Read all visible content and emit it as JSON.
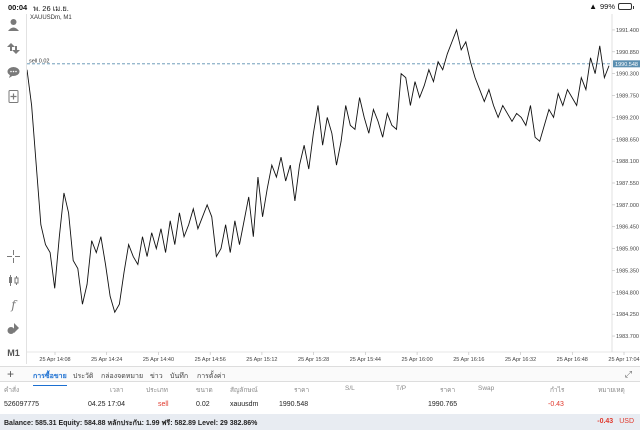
{
  "status_bar": {
    "time": "00:04",
    "date": "พ. 26 เม.ย.",
    "battery": "99%",
    "battery_level": 0.99
  },
  "toolbar": {
    "timeframe": "M1"
  },
  "chart": {
    "symbol_label": "XAUUSDm, M1",
    "order_line_label": "sell 0.02",
    "order_price": 1990.548,
    "current_price_tag": "1990.548",
    "line_color": "#111111",
    "order_line_color": "#5b8fb0",
    "price_tag_color": "#5b8fb0"
  },
  "chart_data": {
    "type": "line",
    "title": "XAUUSDm, M1",
    "xlabel": "",
    "ylabel": "",
    "ylim": [
      1983.5,
      1991.6
    ],
    "grid": false,
    "y_ticks": [
      "1991.400",
      "1990.850",
      "1990.300",
      "1989.750",
      "1989.200",
      "1988.650",
      "1988.100",
      "1987.550",
      "1987.000",
      "1986.450",
      "1985.900",
      "1985.350",
      "1984.800",
      "1984.250",
      "1983.700"
    ],
    "x_ticks": [
      "25 Apr 14:08",
      "25 Apr 14:24",
      "25 Apr 14:40",
      "25 Apr 14:56",
      "25 Apr 15:12",
      "25 Apr 15:28",
      "25 Apr 15:44",
      "25 Apr 16:00",
      "25 Apr 16:16",
      "25 Apr 16:32",
      "25 Apr 16:48",
      "25 Apr 17:04"
    ],
    "series": [
      {
        "values": [
          1990.4,
          1989.5,
          1988.0,
          1986.5,
          1986.0,
          1985.8,
          1984.9,
          1986.2,
          1987.3,
          1986.8,
          1985.6,
          1985.4,
          1984.5,
          1985.0,
          1986.1,
          1985.8,
          1986.2,
          1985.5,
          1984.7,
          1984.3,
          1984.5,
          1985.3,
          1986.0,
          1985.7,
          1985.5,
          1986.2,
          1985.7,
          1986.3,
          1985.9,
          1986.4,
          1985.8,
          1986.6,
          1986.0,
          1986.8,
          1986.2,
          1986.5,
          1986.9,
          1986.4,
          1986.7,
          1987.0,
          1986.7,
          1985.7,
          1985.9,
          1986.5,
          1985.8,
          1986.6,
          1986.0,
          1986.6,
          1987.2,
          1986.2,
          1987.7,
          1986.7,
          1987.4,
          1988.0,
          1987.7,
          1988.2,
          1987.6,
          1988.0,
          1987.1,
          1988.0,
          1988.5,
          1987.9,
          1988.8,
          1989.5,
          1988.5,
          1989.2,
          1988.8,
          1988.0,
          1988.6,
          1989.5,
          1989.0,
          1988.9,
          1989.7,
          1989.2,
          1988.8,
          1989.4,
          1989.1,
          1988.7,
          1989.3,
          1989.0,
          1988.9,
          1990.3,
          1990.2,
          1989.5,
          1990.1,
          1989.7,
          1990.0,
          1990.4,
          1990.1,
          1990.6,
          1990.4,
          1990.8,
          1991.1,
          1991.4,
          1990.9,
          1991.1,
          1990.6,
          1990.2,
          1989.9,
          1989.6,
          1989.9,
          1989.5,
          1989.2,
          1989.5,
          1989.3,
          1989.1,
          1989.3,
          1989.2,
          1989.0,
          1989.5,
          1988.7,
          1988.6,
          1989.0,
          1989.4,
          1989.2,
          1989.8,
          1989.5,
          1989.9,
          1989.7,
          1989.5,
          1990.2,
          1989.9,
          1990.7,
          1990.3,
          1991.0,
          1990.2,
          1990.5
        ]
      }
    ]
  },
  "tabs": [
    {
      "label": "การซื้อขาย",
      "active": true
    },
    {
      "label": "ประวัติ",
      "active": false
    },
    {
      "label": "กล่องจดหมาย",
      "active": false
    },
    {
      "label": "ข่าว",
      "active": false
    },
    {
      "label": "บันทึก",
      "active": false
    },
    {
      "label": "การตั้งค่า",
      "active": false
    }
  ],
  "table": {
    "headers": [
      "คำสั่ง",
      "เวลา",
      "ประเภท",
      "ขนาด",
      "สัญลักษณ์",
      "ราคา",
      "S/L",
      "T/P",
      "ราคา",
      "Swap",
      "กำไร",
      "หมายเหตุ"
    ],
    "row": [
      "526097775",
      "04.25 17:04",
      "sell",
      "0.02",
      "xauusdm",
      "1990.548",
      "",
      "",
      "1990.765",
      "",
      "-0.43",
      ""
    ]
  },
  "footer": {
    "summary": "Balance: 585.31 Equity: 584.88 หลักประกัน: 1.99 ฟรี: 582.89 Level: 29 382.86%",
    "profit": "-0.43",
    "currency": "USD"
  }
}
